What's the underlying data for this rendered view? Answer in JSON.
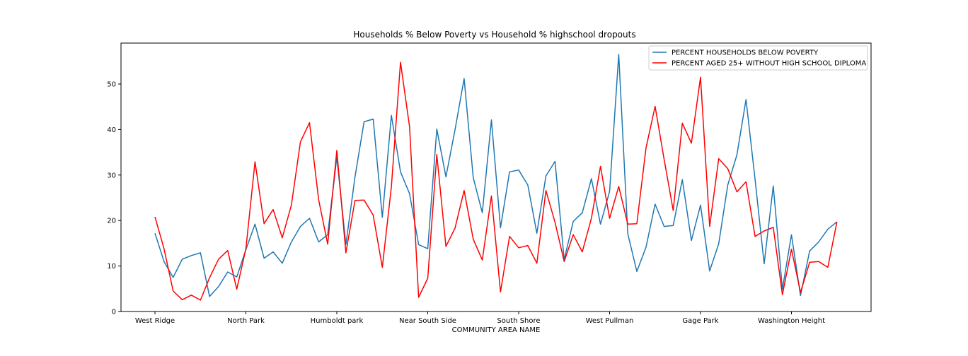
{
  "chart_data": {
    "type": "line",
    "title": "Households % Below Poverty vs Household % highschool dropouts",
    "xlabel": "COMMUNITY AREA NAME",
    "ylabel": "",
    "ylim": [
      0,
      59
    ],
    "yticks": [
      0,
      10,
      20,
      30,
      40,
      50
    ],
    "xtick_labels": [
      {
        "index": 0,
        "label": "West Ridge"
      },
      {
        "index": 10,
        "label": "North Park"
      },
      {
        "index": 20,
        "label": "Humboldt park"
      },
      {
        "index": 30,
        "label": "Near South Side"
      },
      {
        "index": 40,
        "label": "South Shore"
      },
      {
        "index": 50,
        "label": "West Pullman"
      },
      {
        "index": 60,
        "label": "Gage Park"
      },
      {
        "index": 70,
        "label": "Washington Height"
      }
    ],
    "legend_position": "top-right",
    "series": [
      {
        "name": "PERCENT HOUSEHOLDS BELOW POVERTY",
        "color": "#1f77b4",
        "values": [
          17.2,
          11.0,
          7.5,
          11.5,
          12.3,
          12.9,
          3.3,
          5.5,
          8.7,
          7.6,
          13.6,
          19.2,
          11.7,
          13.1,
          10.6,
          15.3,
          18.7,
          20.5,
          15.3,
          16.9,
          33.9,
          14.7,
          29.6,
          41.7,
          42.3,
          20.7,
          43.1,
          30.7,
          25.9,
          14.7,
          13.8,
          40.1,
          29.6,
          39.9,
          51.2,
          29.4,
          21.7,
          42.1,
          18.4,
          30.7,
          31.1,
          27.8,
          17.2,
          29.8,
          33.0,
          11.4,
          19.8,
          21.7,
          29.2,
          19.2,
          26.4,
          56.5,
          17.1,
          8.8,
          14.1,
          23.6,
          18.7,
          18.9,
          29.0,
          15.6,
          23.4,
          8.9,
          14.9,
          27.8,
          34.4,
          46.6,
          29.0,
          10.5,
          27.6,
          4.9,
          16.9,
          3.5,
          13.3,
          15.3,
          18.1,
          19.7
        ]
      },
      {
        "name": "PERCENT AGED 25+ WITHOUT HIGH SCHOOL DIPLOMA",
        "color": "#ff0000",
        "values": [
          20.8,
          13.8,
          4.5,
          2.6,
          3.6,
          2.5,
          7.4,
          11.5,
          13.4,
          4.9,
          13.8,
          32.9,
          19.3,
          22.4,
          16.2,
          23.4,
          37.3,
          41.5,
          24.6,
          14.8,
          35.4,
          12.9,
          24.4,
          24.5,
          21.2,
          9.7,
          27.4,
          54.8,
          40.6,
          3.1,
          7.3,
          34.5,
          14.3,
          18.3,
          26.6,
          15.9,
          11.3,
          25.4,
          4.3,
          16.5,
          14.0,
          14.5,
          10.6,
          26.6,
          19.6,
          11.0,
          16.9,
          13.1,
          20.5,
          31.9,
          20.5,
          27.5,
          19.2,
          19.3,
          35.9,
          45.1,
          33.4,
          22.2,
          41.4,
          37.0,
          51.5,
          18.7,
          33.6,
          31.4,
          26.3,
          28.5,
          16.5,
          17.7,
          18.5,
          3.7,
          13.7,
          4.2,
          10.8,
          11.0,
          9.7,
          19.7
        ]
      }
    ]
  }
}
